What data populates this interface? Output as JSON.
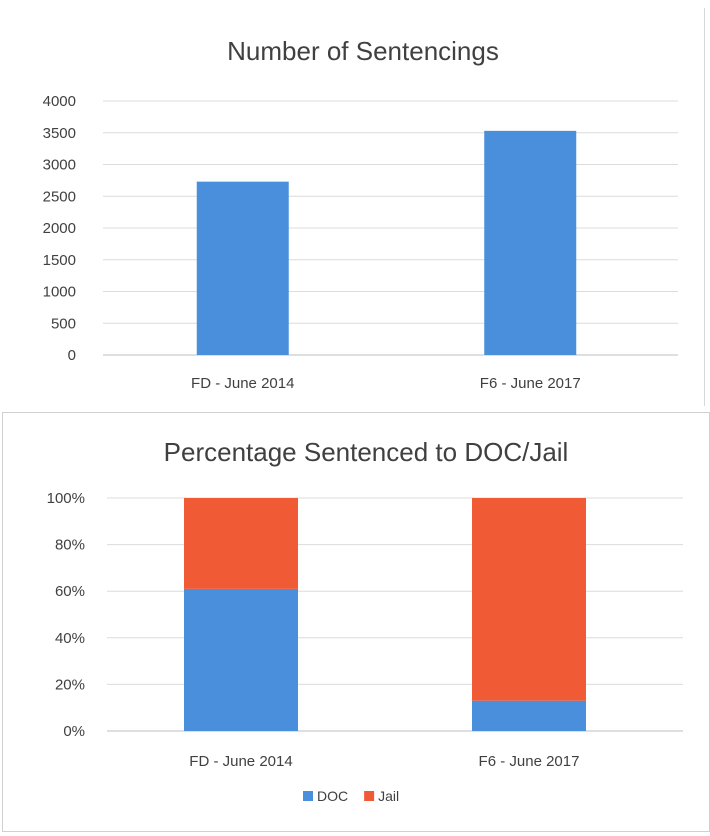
{
  "chart_data": [
    {
      "type": "bar",
      "title": "Number of Sentencings",
      "categories": [
        "FD - June 2014",
        "F6 - June 2017"
      ],
      "values": [
        2730,
        3530
      ],
      "ylim": [
        0,
        4000
      ],
      "yticks": [
        "0",
        "500",
        "1000",
        "1500",
        "2000",
        "2500",
        "3000",
        "3500",
        "4000"
      ],
      "grid": true,
      "colors": {
        "bar": "#4a8fdc"
      }
    },
    {
      "type": "bar",
      "stacked": true,
      "title": "Percentage Sentenced to DOC/Jail",
      "categories": [
        "FD - June 2014",
        "F6 - June 2017"
      ],
      "series": [
        {
          "name": "DOC",
          "values": [
            61,
            13
          ],
          "color": "#4a8fdc"
        },
        {
          "name": "Jail",
          "values": [
            39,
            87
          ],
          "color": "#f05a35"
        }
      ],
      "ylim": [
        0,
        100
      ],
      "yticks": [
        "0%",
        "20%",
        "40%",
        "60%",
        "80%",
        "100%"
      ],
      "grid": true,
      "legend_position": "bottom"
    }
  ]
}
